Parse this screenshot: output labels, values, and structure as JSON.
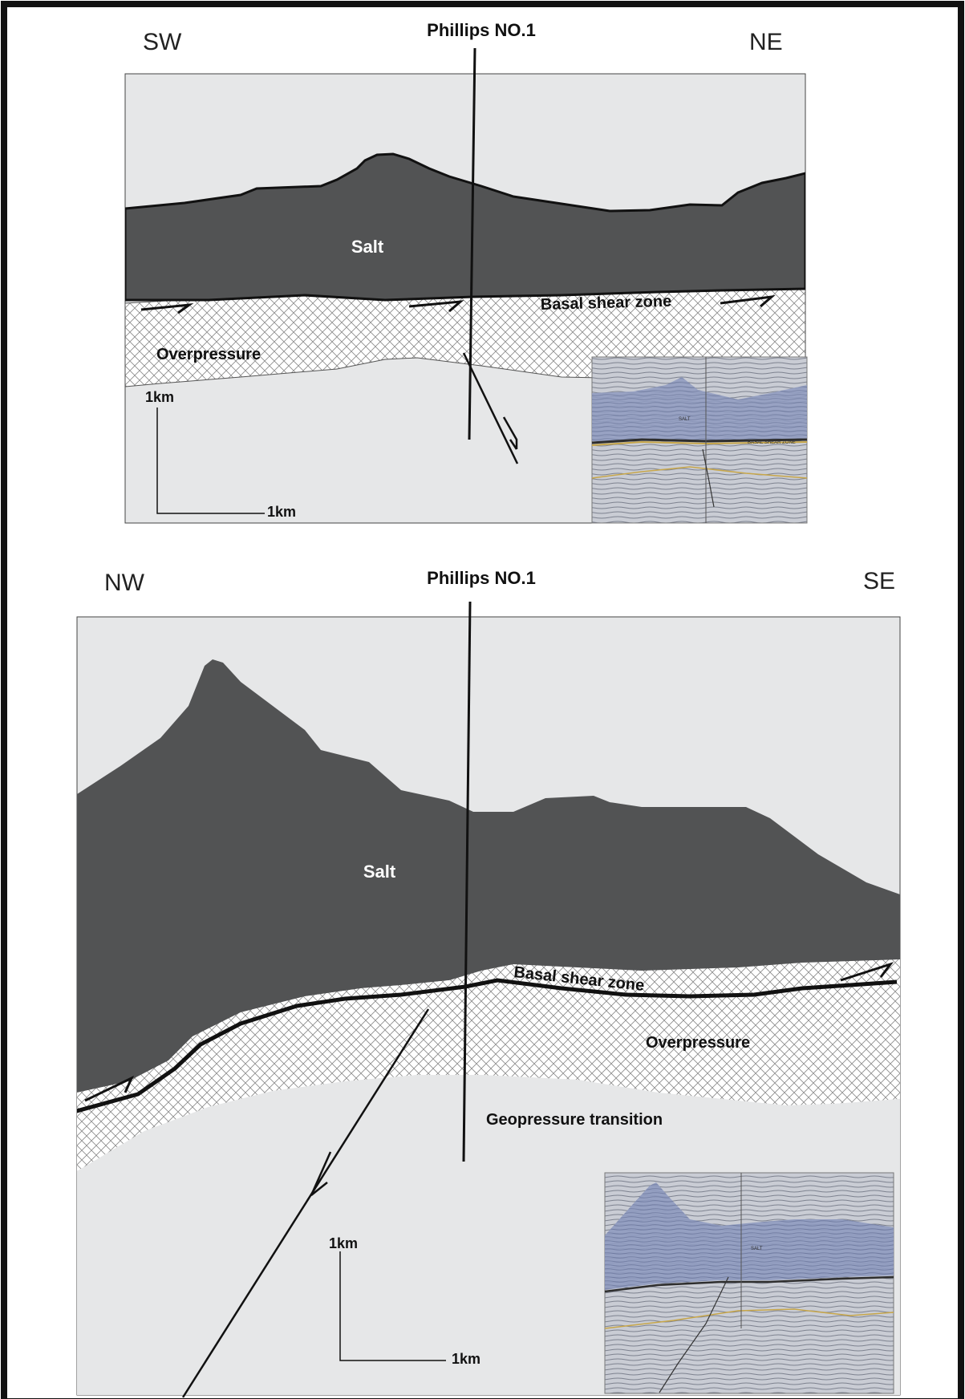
{
  "panels": [
    {
      "well_label": "Phillips NO.1",
      "left_direction": "SW",
      "right_direction": "NE",
      "salt_label": "Salt",
      "shear_label": "Basal  shear zone",
      "overpressure_label": "Overpressure",
      "scale_vertical": "1km",
      "scale_horizontal": "1km",
      "inset_salt_label": "SALT",
      "inset_shear_label": "BASAL SHEAR ZONE"
    },
    {
      "well_label": "Phillips NO.1",
      "left_direction": "NW",
      "right_direction": "SE",
      "salt_label": "Salt",
      "shear_label": "Basal  shear zone",
      "overpressure_label": "Overpressure",
      "transition_label": "Geopressure transition",
      "scale_vertical": "1km",
      "scale_horizontal": "1km",
      "inset_salt_label": "SALT"
    }
  ],
  "colors": {
    "salt": "#525354",
    "background": "#e6e7e8",
    "seismic": "#8d99bd",
    "horizon": "#c8a74a"
  }
}
